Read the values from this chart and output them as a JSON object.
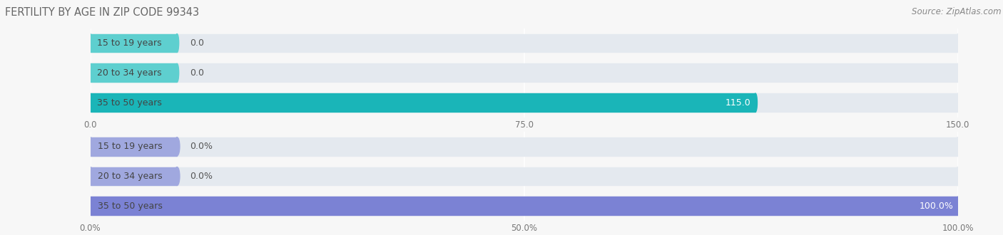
{
  "title": "FERTILITY BY AGE IN ZIP CODE 99343",
  "source_text": "Source: ZipAtlas.com",
  "top_chart": {
    "categories": [
      "15 to 19 years",
      "20 to 34 years",
      "35 to 50 years"
    ],
    "values": [
      0.0,
      0.0,
      115.0
    ],
    "xlim": [
      0,
      150.0
    ],
    "xticks": [
      0.0,
      75.0,
      150.0
    ],
    "bar_color_light": "#5ecfcf",
    "bar_color_full": "#1ab5b8",
    "label_color": "#444444",
    "value_color_inside": "#ffffff",
    "value_color_outside": "#555555",
    "bg_bar_color": "#e4e9ef"
  },
  "bottom_chart": {
    "categories": [
      "15 to 19 years",
      "20 to 34 years",
      "35 to 50 years"
    ],
    "values": [
      0.0,
      0.0,
      100.0
    ],
    "xlim": [
      0,
      100.0
    ],
    "xticks": [
      0.0,
      50.0,
      100.0
    ],
    "bar_color_light": "#a0a8df",
    "bar_color_full": "#7b82d4",
    "label_color": "#444444",
    "value_color_inside": "#ffffff",
    "value_color_outside": "#555555",
    "bg_bar_color": "#e4e9ef"
  },
  "fig_bg": "#f7f7f7",
  "bar_height": 0.62,
  "bar_gap": 0.18,
  "label_fontsize": 9.0,
  "value_fontsize": 9.0,
  "tick_fontsize": 8.5,
  "title_fontsize": 10.5,
  "source_fontsize": 8.5
}
